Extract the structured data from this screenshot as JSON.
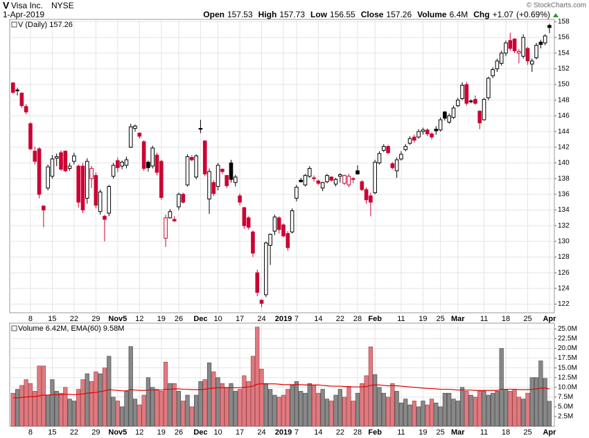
{
  "header": {
    "symbol": "V",
    "name": "Visa Inc.",
    "exchange": "NYSE",
    "date": "1-Apr-2019",
    "copyright": "© StockCharts.com",
    "quote": [
      {
        "label": "Open",
        "value": 157.53
      },
      {
        "label": "High",
        "value": 157.73
      },
      {
        "label": "Low",
        "value": 156.55
      },
      {
        "label": "Close",
        "value": 157.26
      },
      {
        "label": "Volume",
        "value": "6.4M"
      },
      {
        "label": "Chg",
        "value": "+1.07"
      },
      {
        "label": "",
        "value": "(+0.69%)"
      }
    ]
  },
  "chart_data": [
    {
      "type": "candlestick",
      "legend": "V (Daily) 157.26",
      "categories": [
        null,
        null,
        null,
        null,
        "8",
        null,
        null,
        null,
        null,
        "15",
        null,
        null,
        null,
        null,
        "22",
        null,
        null,
        null,
        null,
        "29",
        null,
        null,
        null,
        null,
        "Nov5",
        null,
        null,
        null,
        null,
        "12",
        null,
        null,
        null,
        null,
        "19",
        null,
        null,
        null,
        "26",
        null,
        null,
        null,
        null,
        "Dec",
        null,
        null,
        null,
        "10",
        null,
        null,
        null,
        null,
        "17",
        null,
        null,
        null,
        null,
        "24",
        null,
        null,
        null,
        null,
        "2019",
        null,
        null,
        "7",
        null,
        null,
        null,
        null,
        "14",
        null,
        null,
        null,
        null,
        "22",
        null,
        null,
        null,
        "28",
        null,
        null,
        null,
        "Feb",
        null,
        null,
        null,
        null,
        null,
        "11",
        null,
        null,
        null,
        null,
        "19",
        null,
        null,
        null,
        "25",
        null,
        null,
        null,
        "Mar",
        null,
        null,
        null,
        null,
        null,
        "11",
        null,
        null,
        null,
        null,
        "18",
        null,
        null,
        null,
        null,
        "25",
        null,
        null,
        null,
        null,
        "Apr"
      ],
      "open": [
        150.2,
        149.3,
        148.9,
        147.2,
        145.0,
        141.5,
        141.8,
        134.5,
        136.8,
        138.3,
        140.6,
        141.3,
        141.5,
        139.3,
        140.2,
        139.6,
        139.6,
        135.5,
        138.0,
        138.4,
        133.8,
        133.2,
        133.6,
        138.3,
        140.3,
        139.6,
        139.7,
        142.0,
        144.4,
        143.8,
        142.7,
        140.1,
        139.6,
        141.0,
        140.2,
        130.4,
        133.0,
        132.8,
        134.4,
        136.0,
        137.2,
        140.7,
        138.2,
        144.4,
        142.8,
        135.4,
        137.5,
        137.0,
        139.2,
        138.4,
        140.0,
        137.5,
        135.8,
        134.3,
        133.0,
        131.2,
        126.0,
        122.5,
        123.2,
        129.5,
        131.3,
        133.0,
        132.1,
        131.0,
        131.2,
        135.5,
        137.8,
        137.2,
        138.3,
        138.1,
        137.7,
        136.8,
        137.6,
        138.2,
        137.3,
        138.3,
        137.4,
        137.2,
        138.0,
        139.0,
        137.6,
        136.6,
        135.8,
        136.2,
        140.0,
        141.6,
        142.1,
        139.9,
        139.0,
        140.5,
        141.7,
        142.5,
        143.3,
        143.3,
        144.0,
        144.2,
        143.7,
        144.3,
        144.2,
        146.5,
        145.2,
        145.8,
        147.3,
        148.2,
        150.0,
        147.9,
        148.1,
        146.6,
        145.5,
        148.3,
        151.1,
        152.0,
        152.7,
        154.0,
        155.6,
        155.8,
        154.0,
        153.6,
        154.6,
        152.6,
        153.4,
        155.4,
        155.3,
        157.53
      ],
      "high": [
        150.3,
        149.6,
        149.0,
        147.5,
        145.2,
        142.1,
        142.0,
        134.6,
        139.8,
        141.0,
        141.2,
        141.6,
        141.6,
        140.0,
        141.3,
        139.8,
        140.0,
        140.6,
        139.6,
        138.8,
        136.6,
        133.4,
        137.2,
        140.0,
        140.7,
        140.3,
        140.8,
        145.0,
        144.9,
        143.9,
        142.9,
        140.3,
        142.2,
        141.3,
        140.4,
        133.4,
        134.1,
        133.2,
        136.2,
        136.2,
        141.1,
        141.0,
        141.1,
        145.5,
        142.9,
        139.3,
        137.8,
        140.0,
        139.3,
        138.5,
        140.4,
        138.5,
        136.1,
        134.4,
        133.2,
        131.4,
        126.4,
        122.6,
        130.0,
        131.0,
        133.4,
        133.2,
        132.3,
        131.3,
        134.2,
        137.2,
        138.1,
        138.6,
        139.6,
        138.4,
        137.9,
        137.6,
        138.6,
        138.3,
        138.1,
        138.7,
        138.5,
        138.6,
        138.2,
        139.7,
        137.8,
        136.9,
        136.2,
        140.4,
        141.5,
        142.4,
        142.3,
        140.1,
        140.7,
        141.5,
        142.4,
        143.4,
        143.6,
        144.3,
        144.5,
        144.4,
        143.9,
        144.7,
        145.8,
        146.6,
        146.3,
        147.3,
        148.3,
        150.3,
        150.3,
        148.1,
        148.6,
        146.7,
        148.3,
        151.0,
        152.2,
        153.3,
        154.3,
        155.6,
        156.6,
        155.9,
        154.5,
        156.4,
        154.8,
        153.3,
        155.3,
        155.7,
        156.4,
        157.73
      ],
      "low": [
        148.8,
        148.6,
        147.0,
        146.2,
        141.6,
        139.8,
        135.5,
        131.8,
        136.5,
        138.0,
        139.6,
        139.0,
        138.8,
        139.0,
        139.8,
        134.3,
        133.6,
        134.8,
        136.8,
        134.2,
        133.4,
        130.0,
        133.2,
        138.0,
        138.8,
        139.2,
        139.3,
        141.9,
        144.0,
        143.1,
        139.0,
        138.9,
        139.3,
        138.4,
        135.3,
        129.3,
        132.9,
        132.5,
        134.0,
        134.8,
        137.0,
        140.2,
        137.9,
        143.8,
        138.3,
        133.5,
        135.8,
        136.5,
        138.6,
        136.8,
        137.5,
        137.0,
        134.6,
        131.6,
        131.5,
        128.0,
        123.0,
        121.6,
        122.9,
        127.0,
        130.8,
        131.0,
        130.5,
        128.8,
        131.0,
        135.1,
        137.5,
        137.0,
        138.1,
        137.6,
        137.2,
        136.4,
        137.4,
        137.6,
        137.0,
        137.5,
        137.2,
        136.9,
        137.4,
        138.5,
        136.4,
        134.8,
        133.2,
        136.0,
        139.8,
        141.4,
        141.1,
        139.2,
        138.1,
        140.3,
        141.5,
        142.3,
        142.6,
        143.1,
        143.6,
        143.4,
        143.0,
        143.6,
        144.0,
        145.4,
        145.0,
        145.6,
        147.1,
        148.0,
        147.3,
        147.6,
        147.4,
        144.3,
        145.4,
        148.0,
        150.8,
        151.6,
        152.4,
        153.6,
        154.3,
        154.0,
        152.7,
        153.3,
        152.5,
        151.6,
        153.2,
        154.6,
        155.0,
        156.55
      ],
      "close": [
        149.0,
        149.2,
        147.3,
        146.5,
        141.8,
        140.2,
        136.0,
        134.0,
        139.5,
        140.5,
        140.8,
        139.2,
        139.0,
        139.6,
        140.9,
        135.0,
        134.0,
        140.2,
        139.3,
        134.6,
        136.3,
        132.8,
        137.0,
        139.7,
        139.4,
        140.1,
        140.4,
        144.6,
        144.7,
        143.4,
        139.3,
        139.4,
        141.9,
        138.8,
        135.6,
        133.0,
        133.8,
        132.6,
        136.0,
        135.0,
        140.8,
        140.4,
        140.9,
        144.3,
        138.6,
        138.9,
        136.1,
        139.7,
        138.9,
        137.1,
        137.9,
        138.2,
        135.0,
        132.0,
        131.8,
        128.5,
        123.5,
        122.1,
        129.8,
        130.9,
        133.1,
        131.5,
        130.7,
        129.2,
        133.9,
        136.9,
        137.6,
        138.4,
        139.3,
        138.0,
        137.4,
        137.5,
        138.4,
        137.8,
        137.9,
        138.5,
        138.4,
        138.3,
        137.9,
        138.6,
        136.6,
        135.3,
        135.0,
        140.1,
        141.2,
        142.1,
        141.3,
        139.4,
        140.4,
        141.1,
        142.1,
        143.1,
        142.9,
        144.0,
        144.2,
        143.7,
        143.3,
        144.1,
        145.5,
        145.7,
        146.0,
        147.0,
        148.0,
        149.9,
        147.6,
        147.8,
        147.6,
        145.1,
        148.1,
        150.8,
        151.9,
        153.0,
        154.0,
        155.3,
        154.6,
        154.3,
        154.2,
        156.0,
        153.0,
        153.0,
        155.0,
        155.1,
        156.19,
        157.26
      ],
      "up_color": "#000000",
      "down_color": "#cc0033",
      "ylim": [
        120.9,
        158.3
      ],
      "yticks": [
        122,
        124,
        126,
        128,
        130,
        132,
        134,
        136,
        138,
        140,
        142,
        144,
        146,
        148,
        150,
        152,
        154,
        156,
        158
      ],
      "grid": true
    },
    {
      "type": "bar",
      "legend": "Volume 6.42M, EMA(60) 9.58M",
      "series": [
        {
          "name": "Volume",
          "color": "#888888",
          "down_color": "#e07a80",
          "values": [
            8.5,
            9.5,
            10.5,
            12,
            11,
            9,
            15.5,
            15.5,
            8,
            12,
            9,
            8.5,
            10,
            7,
            6.5,
            9.5,
            12,
            13.5,
            11.5,
            14,
            13.5,
            15,
            18,
            7.5,
            6.5,
            5,
            9,
            20.5,
            7,
            5.5,
            8,
            12.5,
            10,
            9.5,
            9,
            16.5,
            11,
            11,
            9,
            6.5,
            8,
            5,
            8,
            11.5,
            12,
            16.3,
            14,
            12.5,
            11,
            10,
            11,
            9,
            9.5,
            13,
            11.5,
            18,
            25.5,
            14.7,
            11,
            9.5,
            8,
            7.5,
            8,
            9.5,
            10.5,
            11.5,
            9,
            8.5,
            11,
            10.5,
            8.5,
            9.5,
            7,
            6.5,
            8,
            9.5,
            7.5,
            10,
            6.5,
            8.5,
            11,
            13,
            20.4,
            13.3,
            10,
            8.5,
            7.5,
            11,
            9,
            6,
            7,
            5.5,
            6.5,
            5,
            6.5,
            5.5,
            7,
            6,
            5,
            8.5,
            8.5,
            7,
            6.5,
            10,
            9,
            8,
            7.5,
            9,
            9,
            8,
            8.5,
            9,
            20,
            9.5,
            9,
            9.5,
            7.5,
            7,
            8.5,
            12.5,
            12.5,
            16.8,
            12.3,
            6.42
          ]
        },
        {
          "name": "EMA(60)",
          "color": "#e00000",
          "values": [
            7.3,
            7.3,
            7.4,
            7.5,
            7.6,
            7.6,
            7.8,
            8.0,
            8.0,
            8.1,
            8.1,
            8.1,
            8.2,
            8.2,
            8.1,
            8.2,
            8.3,
            8.5,
            8.6,
            8.7,
            8.9,
            9.1,
            9.4,
            9.3,
            9.2,
            9.1,
            9.1,
            9.4,
            9.3,
            9.2,
            9.2,
            9.3,
            9.3,
            9.3,
            9.3,
            9.5,
            9.5,
            9.6,
            9.6,
            9.5,
            9.5,
            9.4,
            9.4,
            9.4,
            9.5,
            9.7,
            9.8,
            9.9,
            9.9,
            9.9,
            9.9,
            9.9,
            9.9,
            10.0,
            10.1,
            10.3,
            10.8,
            10.9,
            10.9,
            10.9,
            10.9,
            10.8,
            10.7,
            10.7,
            10.7,
            10.7,
            10.7,
            10.6,
            10.6,
            10.6,
            10.6,
            10.5,
            10.4,
            10.3,
            10.3,
            10.3,
            10.2,
            10.2,
            10.1,
            10.1,
            10.1,
            10.2,
            10.5,
            10.6,
            10.6,
            10.5,
            10.4,
            10.4,
            10.4,
            10.3,
            10.2,
            10.1,
            10.0,
            9.9,
            9.8,
            9.7,
            9.7,
            9.6,
            9.5,
            9.5,
            9.5,
            9.4,
            9.3,
            9.3,
            9.3,
            9.3,
            9.2,
            9.2,
            9.2,
            9.2,
            9.2,
            9.2,
            9.5,
            9.5,
            9.5,
            9.5,
            9.4,
            9.4,
            9.4,
            9.5,
            9.6,
            9.8,
            9.8,
            9.58
          ]
        }
      ],
      "ylim": [
        0,
        26.5
      ],
      "yticks": [
        {
          "value": 2.5,
          "label": "2.5M"
        },
        {
          "value": 5,
          "label": "5.0M"
        },
        {
          "value": 7.5,
          "label": "7.5M"
        },
        {
          "value": 10,
          "label": "10.0M"
        },
        {
          "value": 12.5,
          "label": "12.5M"
        },
        {
          "value": 15,
          "label": "15.0M"
        },
        {
          "value": 17.5,
          "label": "17.5M"
        },
        {
          "value": 20,
          "label": "20.0M"
        },
        {
          "value": 22.5,
          "label": "22.5M"
        },
        {
          "value": 25,
          "label": "25.0M"
        }
      ],
      "grid": true
    }
  ]
}
